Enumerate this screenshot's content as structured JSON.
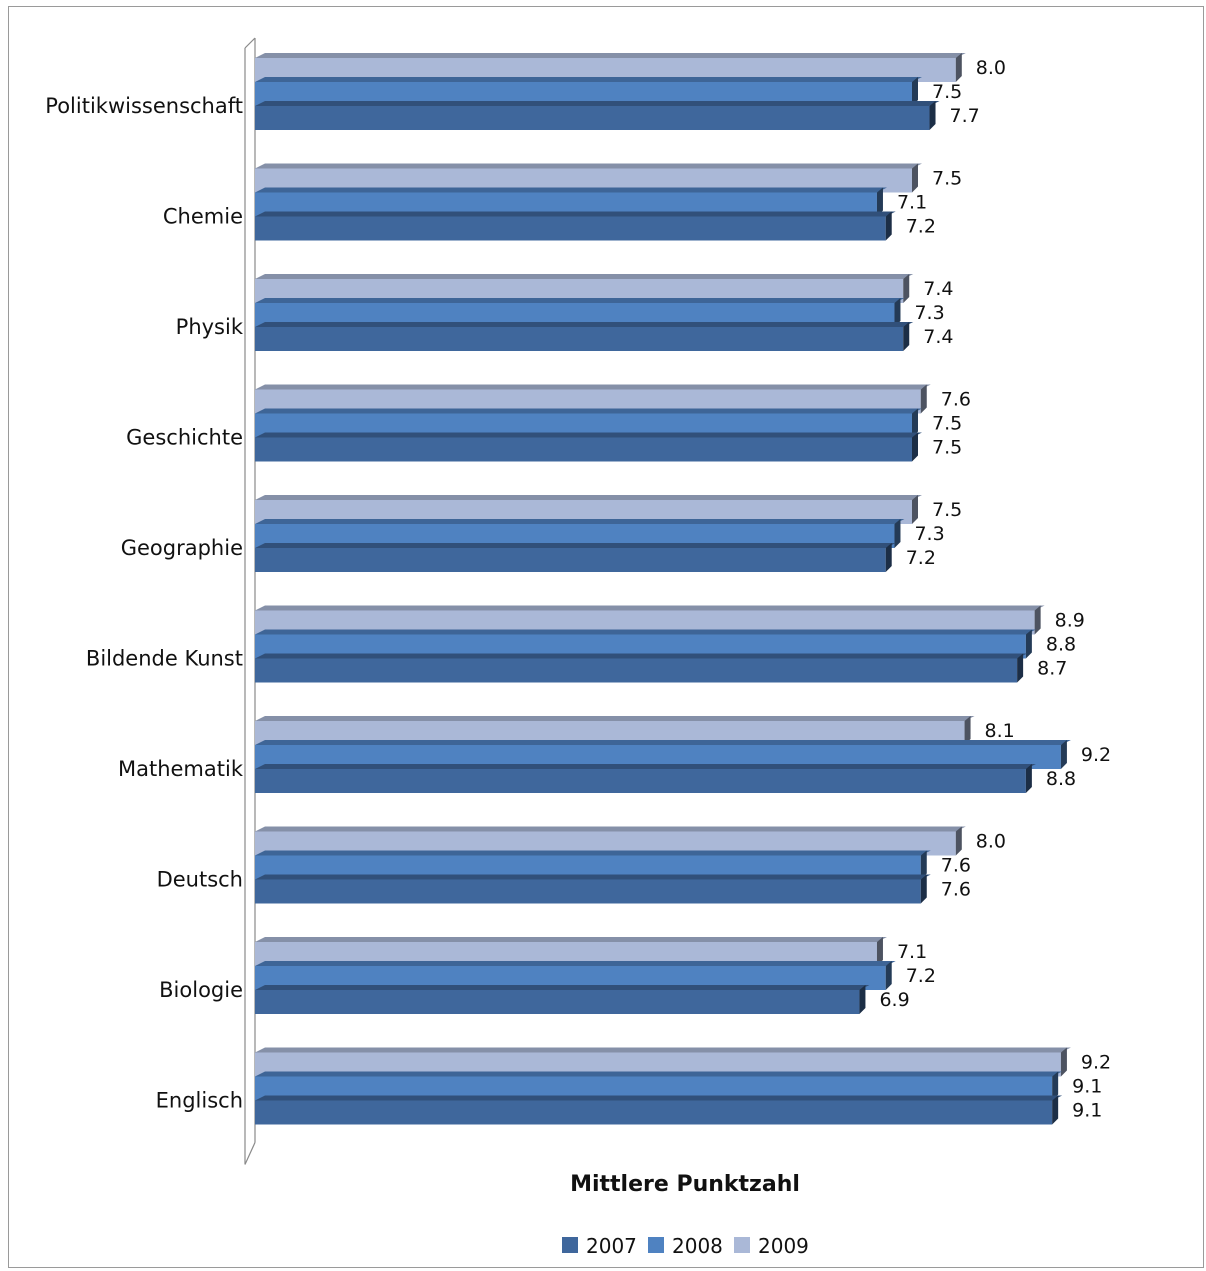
{
  "chart_data": {
    "type": "bar",
    "orientation": "horizontal",
    "categories": [
      "Politikwissenschaft",
      "Chemie",
      "Physik",
      "Geschichte",
      "Geographie",
      "Bildende Kunst",
      "Mathematik",
      "Deutsch",
      "Biologie",
      "Englisch"
    ],
    "series": [
      {
        "name": "2007",
        "color": "#3f679c",
        "values": [
          7.7,
          7.2,
          7.4,
          7.5,
          7.2,
          8.7,
          8.8,
          7.6,
          6.9,
          9.1
        ],
        "labels": [
          "7.7",
          "7.2",
          "7.4",
          "7.5",
          "7.2",
          "8.7",
          "8.8",
          "7.6",
          "6.9",
          "9.1"
        ]
      },
      {
        "name": "2008",
        "color": "#4f82c1",
        "values": [
          7.5,
          7.1,
          7.3,
          7.5,
          7.3,
          8.8,
          9.2,
          7.6,
          7.2,
          9.1
        ],
        "labels": [
          "7.5",
          "7.1",
          "7.3",
          "7.5",
          "7.3",
          "8.8",
          "9.2",
          "7.6",
          "7.2",
          "9.1"
        ]
      },
      {
        "name": "2009",
        "color": "#aab8d7",
        "values": [
          8.0,
          7.5,
          7.4,
          7.6,
          7.5,
          8.9,
          8.1,
          8.0,
          7.1,
          9.2
        ],
        "labels": [
          "8.0",
          "7.5",
          "7.4",
          "7.6",
          "7.5",
          "8.9",
          "8.1",
          "8.0",
          "7.1",
          "9.2"
        ]
      }
    ],
    "xlabel": "Mittlere Punktzahl",
    "ylabel": "",
    "xlim": [
      0,
      10.5
    ],
    "grid": false,
    "legend": "bottom",
    "style": "3d"
  }
}
